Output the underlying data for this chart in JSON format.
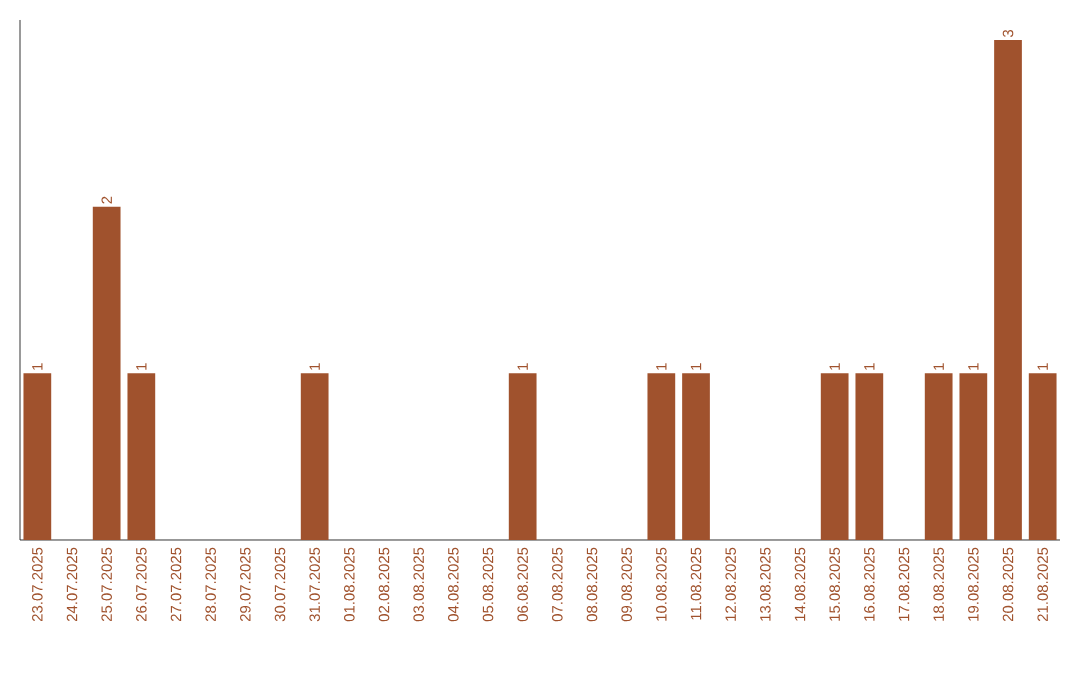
{
  "chart_data": {
    "type": "bar",
    "categories": [
      "23.07.2025",
      "24.07.2025",
      "25.07.2025",
      "26.07.2025",
      "27.07.2025",
      "28.07.2025",
      "29.07.2025",
      "30.07.2025",
      "31.07.2025",
      "01.08.2025",
      "02.08.2025",
      "03.08.2025",
      "04.08.2025",
      "05.08.2025",
      "06.08.2025",
      "07.08.2025",
      "08.08.2025",
      "09.08.2025",
      "10.08.2025",
      "11.08.2025",
      "12.08.2025",
      "13.08.2025",
      "14.08.2025",
      "15.08.2025",
      "16.08.2025",
      "17.08.2025",
      "18.08.2025",
      "19.08.2025",
      "20.08.2025",
      "21.08.2025"
    ],
    "values": [
      1,
      0,
      2,
      1,
      0,
      0,
      0,
      0,
      1,
      0,
      0,
      0,
      0,
      0,
      1,
      0,
      0,
      0,
      1,
      1,
      0,
      0,
      0,
      1,
      1,
      0,
      1,
      1,
      3,
      1
    ],
    "value_labels": [
      "1",
      null,
      "2",
      "1",
      null,
      null,
      null,
      null,
      "1",
      null,
      null,
      null,
      null,
      null,
      "1",
      null,
      null,
      null,
      "1",
      "1",
      null,
      null,
      null,
      "1",
      "1",
      null,
      "1",
      "1",
      "3",
      "1"
    ],
    "color": "#a0522d"
  }
}
